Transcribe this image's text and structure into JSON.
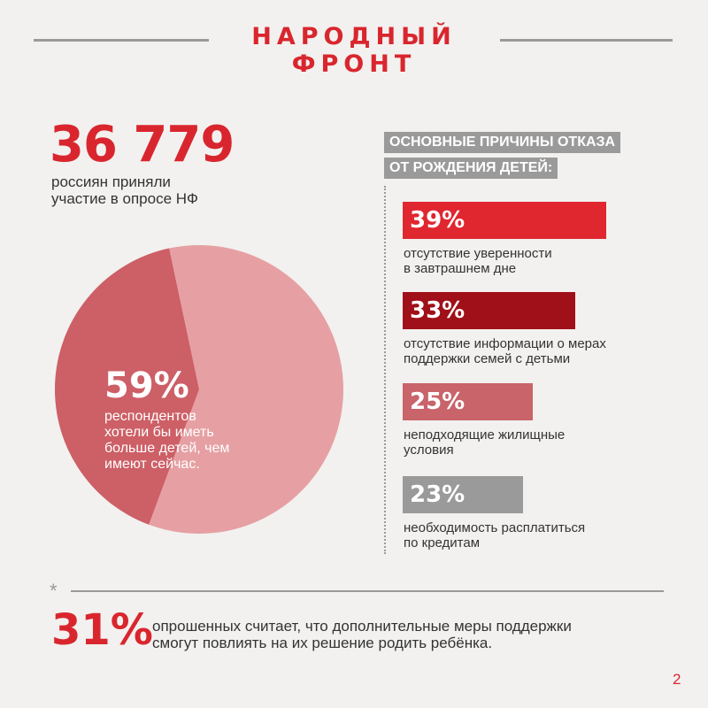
{
  "header": {
    "brand": "НАРОДНЫЙ ФРОНТ"
  },
  "survey": {
    "count": "36 779",
    "desc_lines": [
      "россиян приняли",
      "участие в опросе НФ"
    ]
  },
  "pie": {
    "percent": "59%",
    "desc_lines": [
      "респондентов",
      "хотели бы иметь",
      "больше детей, чем",
      "имеют сейчас."
    ]
  },
  "reasons": {
    "title_lines": [
      "ОСНОВНЫЕ ПРИЧИНЫ ОТКАЗА",
      "ОТ РОЖДЕНИЯ ДЕТЕЙ:"
    ],
    "items": [
      {
        "percent_label": "39%",
        "label_lines": [
          "отсутствие уверенности",
          "в завтрашнем дне"
        ]
      },
      {
        "percent_label": "33%",
        "label_lines": [
          "отсутствие информации о мерах",
          "поддержки семей с детьми"
        ]
      },
      {
        "percent_label": "25%",
        "label_lines": [
          "неподходящие жилищные",
          "условия"
        ]
      },
      {
        "percent_label": "23%",
        "label_lines": [
          "необходимость расплатиться",
          "по кредитам"
        ]
      }
    ]
  },
  "footer": {
    "star": "*",
    "percent": "31%",
    "text_lines": [
      "опрошенных считает, что дополнительные меры поддержки",
      "смогут повлиять на их решение родить ребёнка."
    ]
  },
  "page_number": "2",
  "chart_data": [
    {
      "type": "pie",
      "categories": [
        "хотели бы иметь больше детей, чем имеют сейчас",
        ""
      ],
      "values": [
        59,
        41
      ],
      "colors": [
        "#e6a0a3",
        "#cd5f66"
      ]
    },
    {
      "type": "bar",
      "title": "ОСНОВНЫЕ ПРИЧИНЫ ОТКАЗА ОТ РОЖДЕНИЯ ДЕТЕЙ:",
      "categories": [
        "отсутствие уверенности в завтрашнем дне",
        "отсутствие информации о мерах поддержки семей с детьми",
        "неподходящие жилищные условия",
        "необходимость расплатиться по кредитам"
      ],
      "values": [
        39,
        33,
        25,
        23
      ],
      "colors": [
        "#e0272f",
        "#a01018",
        "#c8646a",
        "#9a9a9a"
      ],
      "orientation": "horizontal"
    }
  ]
}
